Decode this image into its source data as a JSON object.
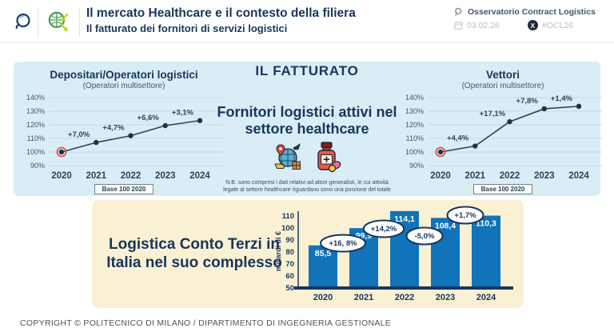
{
  "header": {
    "title": "Il mercato Healthcare e il contesto della filiera",
    "subtitle": "Il fatturato dei fornitori di servizi logistici",
    "org_label": "Osservatorio Contract Logistics",
    "date": "03.02.26",
    "hashtag": "#OCL26"
  },
  "center": {
    "heading": "IL FATTURATO",
    "subheading_line1": "Fornitori logistici attivi nel",
    "subheading_line2": "settore healthcare",
    "note_line1": "N.B. sono compresi i dati relativi ad attori generalisti, le cui attività",
    "note_line2": "legate al settore healthcare riguardano sono una porzione del totale"
  },
  "bottom": {
    "title_line1": "Logistica Conto Terzi in",
    "title_line2": "Italia nel suo complesso"
  },
  "footer": "COPYRIGHT © POLITECNICO DI MILANO / DIPARTIMENTO DI INGEGNERIA GESTIONALE",
  "icons": {
    "header_left": [
      "magnifier-logo-icon",
      "globe-arrows-logo-icon"
    ],
    "header_right": [
      "search-icon",
      "calendar-icon",
      "x-logo-icon"
    ],
    "center": [
      "logistics-globe-icon",
      "medicine-bottle-icon"
    ]
  },
  "colors": {
    "navy": "#17365d",
    "line_dark": "#2c4257",
    "grid_blue": "#c5dce9",
    "tick_gray": "#415468",
    "panel_blue": "#d9edf6",
    "panel_cream": "#faf0d3",
    "bar_blue": "#1173b9",
    "accent_red": "#e2503c",
    "muted_gray": "#b6c0c9"
  },
  "chart_data": [
    {
      "type": "line",
      "title": "Depositari/Operatori logistici",
      "subtitle": "(Operatori multisettore)",
      "x": [
        "2020",
        "2021",
        "2022",
        "2023",
        "2024"
      ],
      "values": [
        100,
        107.0,
        112.0,
        119.4,
        123.1
      ],
      "pct_labels": [
        "+7,0%",
        "+4,7%",
        "+6,6%",
        "+3,1%"
      ],
      "yticks": [
        140,
        130,
        120,
        110,
        100,
        90
      ],
      "ylim": [
        90,
        140
      ],
      "ytick_suffix": "%",
      "grid": true,
      "highlight_first_point": true,
      "base_label": "Base 100 2020"
    },
    {
      "type": "line",
      "title": "Vettori",
      "subtitle": "(Operatori multisettore)",
      "x": [
        "2020",
        "2021",
        "2022",
        "2023",
        "2024"
      ],
      "values": [
        100,
        104.4,
        122.3,
        131.8,
        133.6
      ],
      "pct_labels": [
        "+4,4%",
        "+17,1%",
        "+7,8%",
        "+1,4%"
      ],
      "yticks": [
        140,
        130,
        120,
        110,
        100,
        90
      ],
      "ylim": [
        90,
        140
      ],
      "ytick_suffix": "%",
      "grid": true,
      "highlight_first_point": true,
      "base_label": "Base 100 2020"
    },
    {
      "type": "bar",
      "title": "Logistica Conto Terzi in Italia nel suo complesso",
      "categories": [
        "2020",
        "2021",
        "2022",
        "2023",
        "2024"
      ],
      "values": [
        85.5,
        99.9,
        114.1,
        108.4,
        110.3
      ],
      "value_labels": [
        "85,5",
        "99,9",
        "114,1",
        "108,4",
        "110,3"
      ],
      "pct_labels": [
        "+16, 8%",
        "+14,2%",
        "-5,0%",
        "+1,7%"
      ],
      "ylabel": "miliardi di €",
      "yticks": [
        50,
        60,
        70,
        80,
        90,
        100,
        110
      ],
      "ylim": [
        50,
        115
      ],
      "grid": false
    }
  ]
}
